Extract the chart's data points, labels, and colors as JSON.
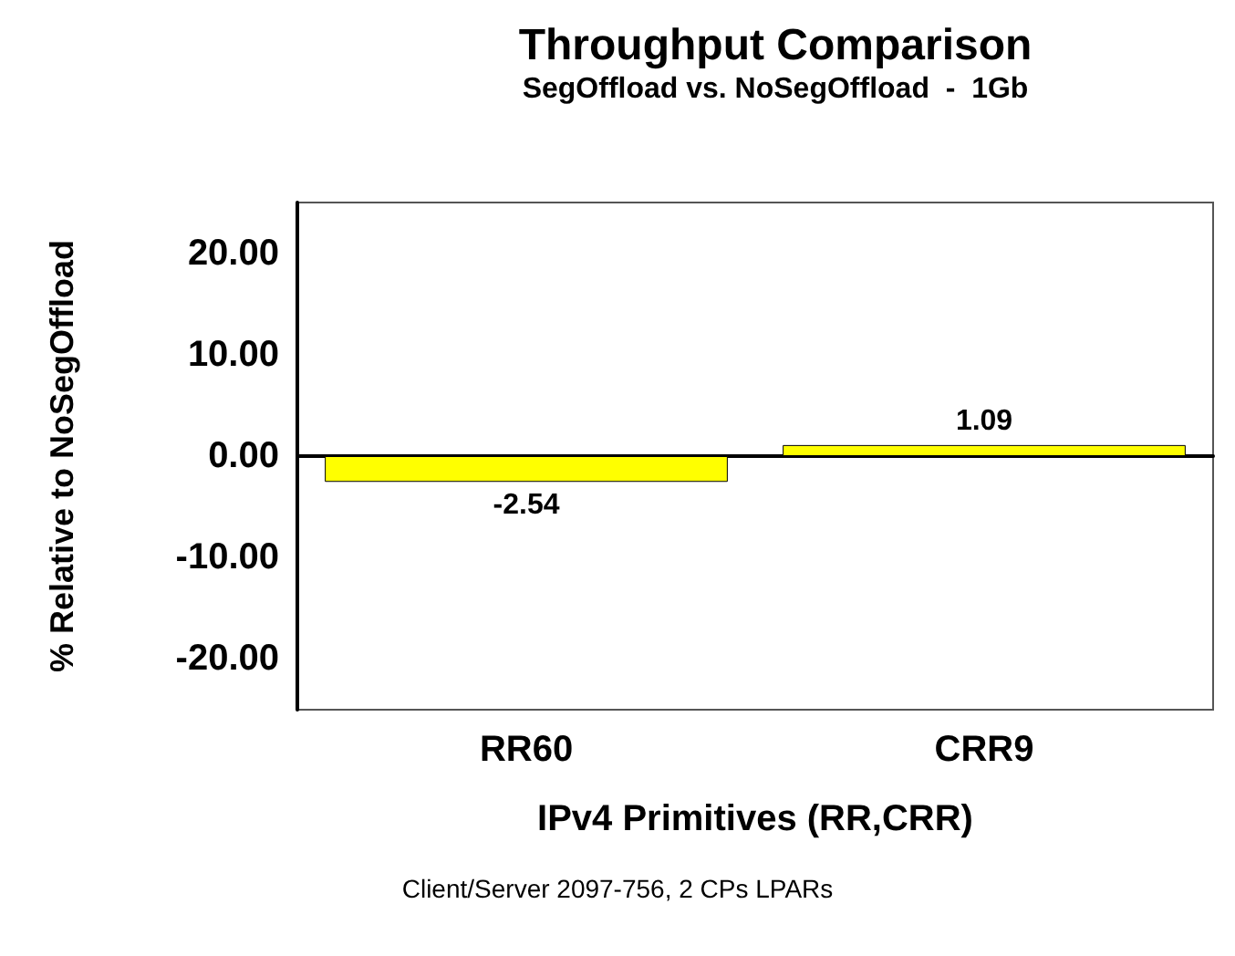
{
  "chart_data": {
    "type": "bar",
    "title": "Throughput Comparison",
    "subtitle": "SegOffload vs. NoSegOffload  -  1Gb",
    "xlabel": "IPv4 Primitives (RR,CRR)",
    "ylabel": "% Relative to NoSegOffload",
    "annotations": [
      "Client/Server 2097-756, 2 CPs LPARs"
    ],
    "categories": [
      "RR60",
      "CRR9"
    ],
    "values": [
      -2.54,
      1.09
    ],
    "color": "#ffff00",
    "ylim": [
      -25,
      25
    ],
    "yticks": [
      {
        "value": -20,
        "label": "-20.00"
      },
      {
        "value": -10,
        "label": "-10.00"
      },
      {
        "value": 0,
        "label": "0.00"
      },
      {
        "value": 10,
        "label": "10.00"
      },
      {
        "value": 20,
        "label": "20.00"
      }
    ],
    "data_labels": true
  }
}
